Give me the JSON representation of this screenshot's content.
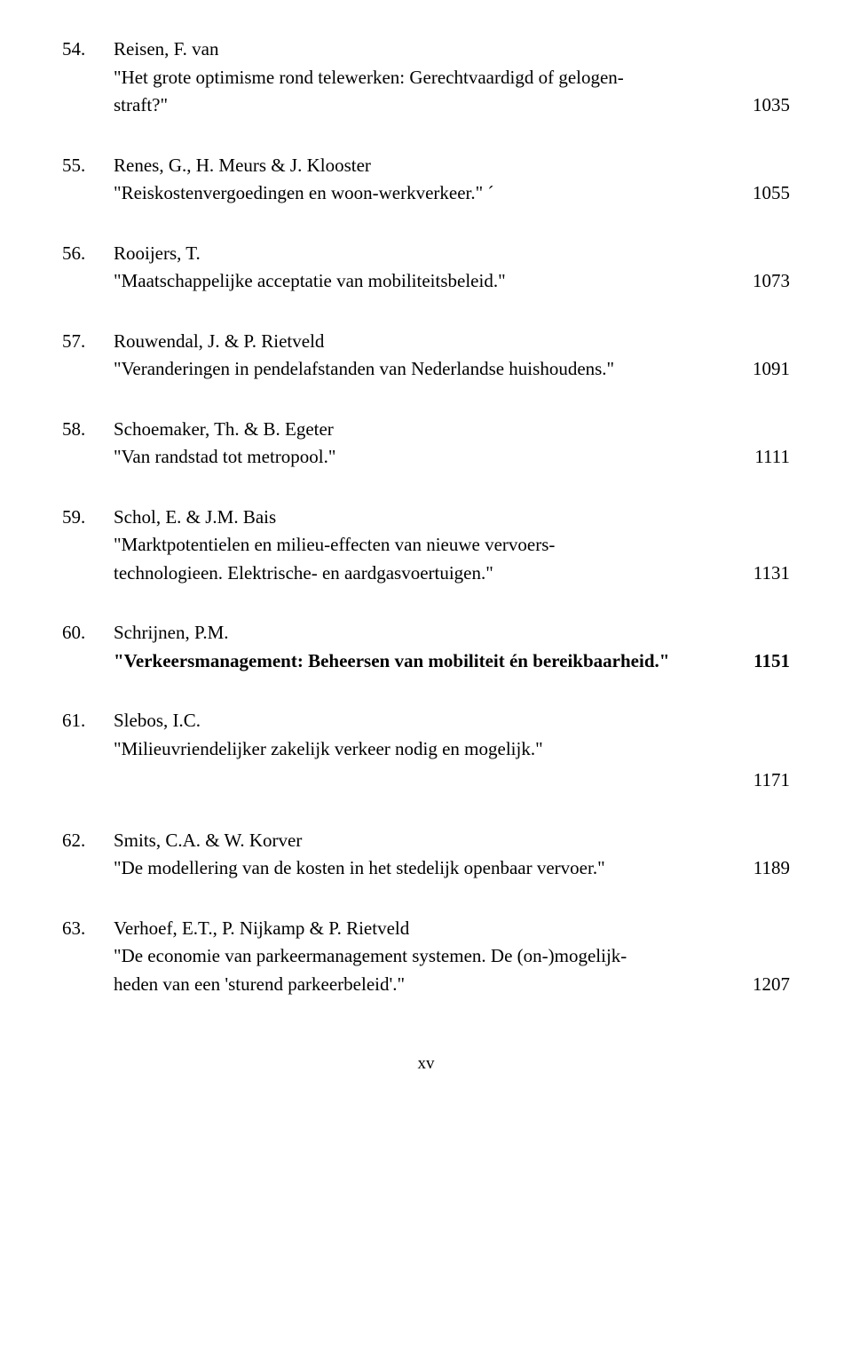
{
  "entries": [
    {
      "num": "54.",
      "author": "Reisen, F. van",
      "title_lines": [
        "\"Het grote optimisme rond telewerken: Gerechtvaardigd of gelogen-",
        "straft?\""
      ],
      "page": "1035",
      "bold_title": false
    },
    {
      "num": "55.",
      "author": "Renes, G., H. Meurs & J. Klooster",
      "title_lines": [
        "\"Reiskostenvergoedingen en woon-werkverkeer.\"  ˊ"
      ],
      "page": "1055",
      "bold_title": false
    },
    {
      "num": "56.",
      "author": "Rooijers, T.",
      "title_lines": [
        "\"Maatschappelijke acceptatie van mobiliteitsbeleid.\""
      ],
      "page": "1073",
      "bold_title": false
    },
    {
      "num": "57.",
      "author": "Rouwendal, J. & P. Rietveld",
      "title_lines": [
        "\"Veranderingen in pendelafstanden van Nederlandse huishoudens.\""
      ],
      "page": "1091",
      "bold_title": false
    },
    {
      "num": "58.",
      "author": "Schoemaker, Th. & B. Egeter",
      "title_lines": [
        "\"Van randstad tot metropool.\""
      ],
      "page": "1111",
      "bold_title": false
    },
    {
      "num": "59.",
      "author": "Schol, E. & J.M. Bais",
      "title_lines": [
        "\"Marktpotentielen en milieu-effecten van nieuwe vervoers-",
        "technologieen. Elektrische- en aardgasvoertuigen.\""
      ],
      "page": "1131",
      "bold_title": false
    },
    {
      "num": "60.",
      "author": "Schrijnen, P.M.",
      "title_lines": [
        "\"Verkeersmanagement: Beheersen van mobiliteit én bereikbaarheid.\""
      ],
      "page": "1151",
      "bold_title": true
    },
    {
      "num": "61.",
      "author": "Slebos, I.C.",
      "title_lines": [
        "\"Milieuvriendelijker zakelijk verkeer nodig en mogelijk.\""
      ],
      "page": "1171",
      "page_below": true,
      "bold_title": false
    },
    {
      "num": "62.",
      "author": "Smits, C.A. & W. Korver",
      "title_lines": [
        "\"De modellering van de kosten in het stedelijk openbaar vervoer.\""
      ],
      "page": "1189",
      "bold_title": false
    },
    {
      "num": "63.",
      "author": "Verhoef, E.T., P. Nijkamp & P. Rietveld",
      "title_lines": [
        "\"De economie van parkeermanagement systemen. De (on-)mogelijk-",
        "heden van een 'sturend parkeerbeleid'.\""
      ],
      "page": "1207",
      "bold_title": false
    }
  ],
  "footer": "xv"
}
